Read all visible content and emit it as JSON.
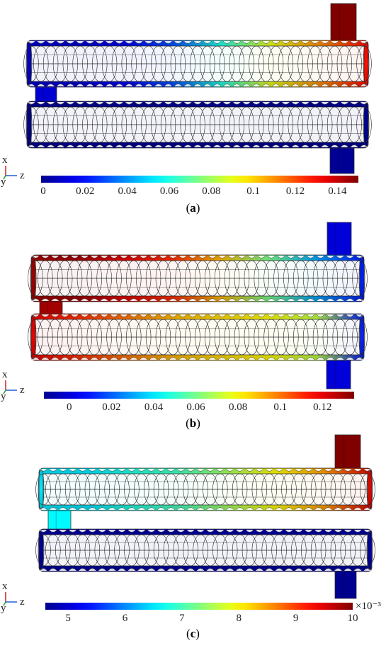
{
  "panels": [
    {
      "label": "a",
      "colorbar": {
        "ticks": [
          "0",
          "0.02",
          "0.04",
          "0.06",
          "0.08",
          "0.1",
          "0.12",
          "0.14"
        ],
        "min": -0.001,
        "max": 0.15,
        "multiplier": ""
      },
      "axes": {
        "x": "x",
        "y": "y",
        "z": "z"
      },
      "inlet_top_right_value": 0.15,
      "connector_left_value": 0.01,
      "outlet_bottom_right_value": 0.0,
      "upper_tube_gradient": [
        0.01,
        0.01,
        0.015,
        0.03,
        0.06,
        0.09,
        0.11,
        0.13
      ],
      "lower_tube_gradient": [
        0.0,
        0.0,
        0.0,
        0.0,
        0.0,
        0.0,
        0.0,
        0.0
      ]
    },
    {
      "label": "b",
      "colorbar": {
        "ticks": [
          "0",
          "0.02",
          "0.04",
          "0.06",
          "0.08",
          "0.1",
          "0.12"
        ],
        "min": -0.012,
        "max": 0.135,
        "multiplier": ""
      },
      "axes": {
        "x": "x",
        "y": "y",
        "z": "z"
      },
      "inlet_top_right_value": 0.0,
      "connector_left_value": 0.13,
      "outlet_bottom_right_value": 0.0,
      "upper_tube_gradient": [
        0.13,
        0.13,
        0.12,
        0.11,
        0.09,
        0.06,
        0.03,
        0.01
      ],
      "lower_tube_gradient": [
        0.12,
        0.11,
        0.1,
        0.09,
        0.085,
        0.08,
        0.07,
        0.01
      ]
    },
    {
      "label": "c",
      "colorbar": {
        "ticks": [
          "5",
          "6",
          "7",
          "8",
          "9",
          "10"
        ],
        "min": 4.6,
        "max": 10.0,
        "multiplier": "×10⁻³"
      },
      "axes": {
        "x": "x",
        "y": "y",
        "z": "z"
      },
      "inlet_top_right_value": 10.0,
      "connector_left_value": 6.6,
      "outlet_bottom_right_value": 4.6,
      "upper_tube_gradient": [
        6.5,
        6.5,
        6.8,
        7.0,
        7.5,
        8.0,
        8.5,
        9.5
      ],
      "lower_tube_gradient": [
        4.7,
        4.7,
        4.7,
        4.7,
        4.7,
        4.7,
        4.7,
        4.7
      ]
    }
  ]
}
